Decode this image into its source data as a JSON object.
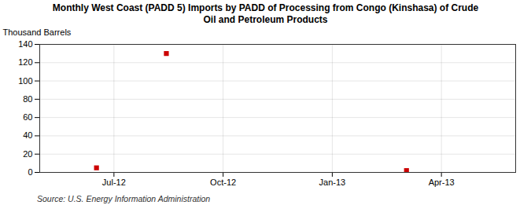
{
  "chart_data": {
    "type": "scatter",
    "title": "Monthly West Coast (PADD 5) Imports by PADD of Processing from Congo (Kinshasa) of Crude\nOil and Petroleum Products",
    "ylabel": "Thousand Barrels",
    "source": "Source: U.S. Energy Information Administration",
    "x": [
      2012.46,
      2012.62,
      2013.17
    ],
    "values": [
      5,
      130,
      2
    ],
    "color": "#cc0000",
    "marker": "square",
    "xlim": [
      2012.33,
      2013.42
    ],
    "xticks": [
      {
        "value": 2012.5,
        "label": "Jul-12"
      },
      {
        "value": 2012.75,
        "label": "Oct-12"
      },
      {
        "value": 2013.0,
        "label": "Jan-13"
      },
      {
        "value": 2013.25,
        "label": "Apr-13"
      }
    ],
    "ylim": [
      0,
      140
    ],
    "yticks": [
      0,
      20,
      40,
      60,
      80,
      100,
      120,
      140
    ],
    "grid": true
  }
}
